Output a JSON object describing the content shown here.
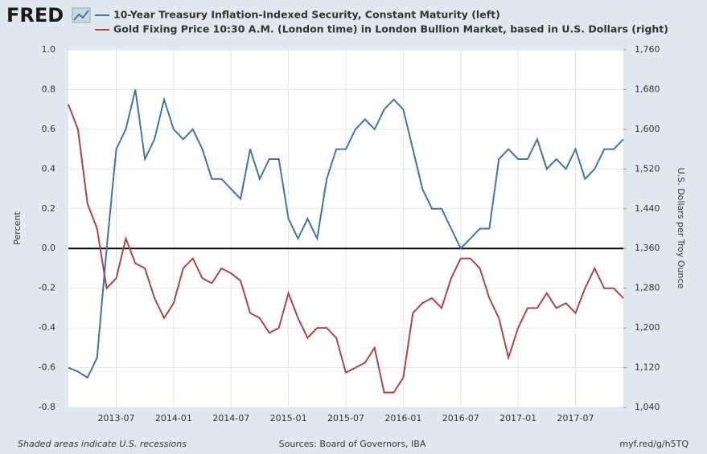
{
  "logo": "FRED",
  "chart_data": {
    "type": "line",
    "x": [
      "2013-02",
      "2013-03",
      "2013-04",
      "2013-05",
      "2013-06",
      "2013-07",
      "2013-08",
      "2013-09",
      "2013-10",
      "2013-11",
      "2013-12",
      "2014-01",
      "2014-02",
      "2014-03",
      "2014-04",
      "2014-05",
      "2014-06",
      "2014-07",
      "2014-08",
      "2014-09",
      "2014-10",
      "2014-11",
      "2014-12",
      "2015-01",
      "2015-02",
      "2015-03",
      "2015-04",
      "2015-05",
      "2015-06",
      "2015-07",
      "2015-08",
      "2015-09",
      "2015-10",
      "2015-11",
      "2015-12",
      "2016-01",
      "2016-02",
      "2016-03",
      "2016-04",
      "2016-05",
      "2016-06",
      "2016-07",
      "2016-08",
      "2016-09",
      "2016-10",
      "2016-11",
      "2016-12",
      "2017-01",
      "2017-02",
      "2017-03",
      "2017-04",
      "2017-05",
      "2017-06",
      "2017-07",
      "2017-08",
      "2017-09",
      "2017-10",
      "2017-11",
      "2017-12"
    ],
    "series": [
      {
        "name": "10-Year Treasury Inflation-Indexed Security, Constant Maturity (left)",
        "color": "#4572a7",
        "axis": "y",
        "values": [
          -0.6,
          -0.62,
          -0.65,
          -0.55,
          0.0,
          0.5,
          0.6,
          0.8,
          0.45,
          0.55,
          0.75,
          0.6,
          0.55,
          0.6,
          0.5,
          0.35,
          0.35,
          0.3,
          0.25,
          0.5,
          0.35,
          0.45,
          0.45,
          0.15,
          0.05,
          0.15,
          0.05,
          0.35,
          0.5,
          0.5,
          0.6,
          0.65,
          0.6,
          0.7,
          0.75,
          0.7,
          0.5,
          0.3,
          0.2,
          0.2,
          0.1,
          0.0,
          0.05,
          0.1,
          0.1,
          0.45,
          0.5,
          0.45,
          0.45,
          0.55,
          0.4,
          0.45,
          0.4,
          0.5,
          0.35,
          0.4,
          0.5,
          0.5,
          0.55
        ]
      },
      {
        "name": "Gold Fixing Price 10:30 A.M. (London time) in London Bullion Market, based in U.S. Dollars (right)",
        "color": "#aa4643",
        "axis": "y2",
        "values": [
          1650,
          1600,
          1450,
          1400,
          1280,
          1300,
          1380,
          1330,
          1320,
          1260,
          1220,
          1250,
          1320,
          1340,
          1300,
          1290,
          1320,
          1310,
          1295,
          1230,
          1220,
          1190,
          1200,
          1270,
          1220,
          1180,
          1200,
          1200,
          1180,
          1110,
          1120,
          1130,
          1160,
          1070,
          1070,
          1100,
          1230,
          1250,
          1260,
          1240,
          1300,
          1340,
          1340,
          1320,
          1260,
          1220,
          1140,
          1200,
          1240,
          1240,
          1270,
          1240,
          1250,
          1230,
          1280,
          1320,
          1280,
          1280,
          1260
        ]
      }
    ],
    "xlim": [
      "2013-02",
      "2017-12"
    ],
    "xticks": [
      "2013-07",
      "2014-01",
      "2014-07",
      "2015-01",
      "2015-07",
      "2016-01",
      "2016-07",
      "2017-01",
      "2017-07"
    ],
    "ylim": [
      -0.8,
      1
    ],
    "yticks": [
      -0.8,
      -0.6,
      -0.4,
      -0.2,
      {
        "value": 0,
        "label": "0.0"
      },
      0.2,
      0.4,
      0.6,
      0.8,
      {
        "value": 1,
        "label": "1.0"
      }
    ],
    "y2lim": [
      1040,
      1760
    ],
    "y2ticks": [
      {
        "value": 1040,
        "label": "1,040"
      },
      {
        "value": 1120,
        "label": "1,120"
      },
      {
        "value": 1200,
        "label": "1,200"
      },
      {
        "value": 1280,
        "label": "1,280"
      },
      {
        "value": 1360,
        "label": "1,360"
      },
      {
        "value": 1440,
        "label": "1,440"
      },
      {
        "value": 1520,
        "label": "1,520"
      },
      {
        "value": 1600,
        "label": "1,600"
      },
      {
        "value": 1680,
        "label": "1,680"
      },
      {
        "value": 1760,
        "label": "1,760"
      }
    ],
    "ylabel": "Percent",
    "y2label": "U.S. Dollars per Troy Ounce",
    "grid": true,
    "zero_line": true,
    "footer_left": "Shaded areas indicate U.S. recessions",
    "footer_center": "Sources: Board of Governors, IBA",
    "footer_right": "myf.red/g/h5TQ"
  }
}
